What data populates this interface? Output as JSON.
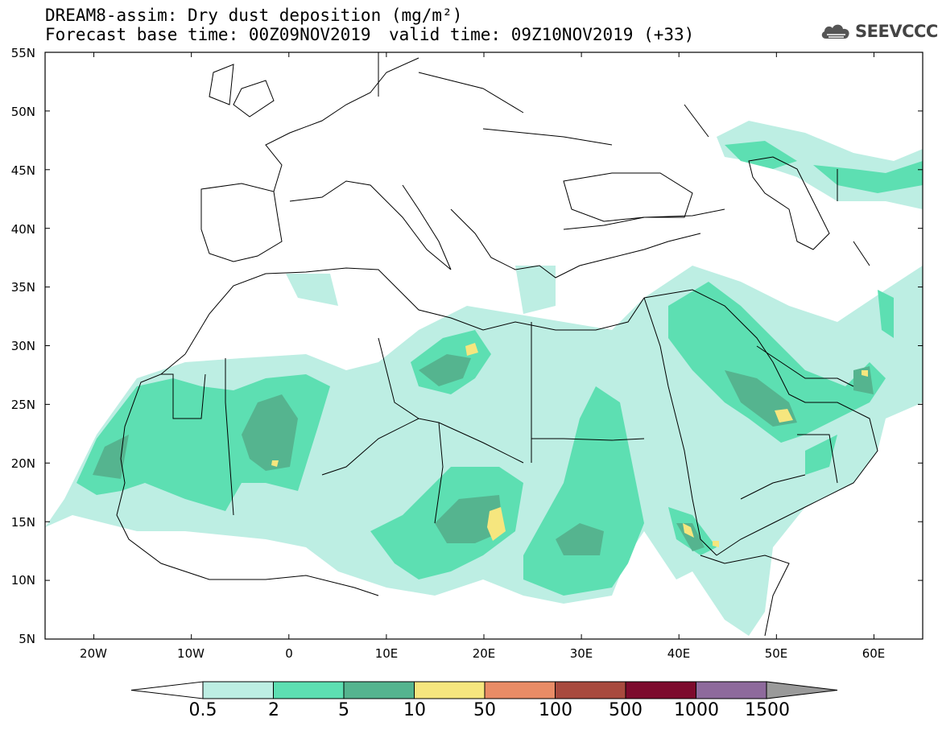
{
  "title": {
    "line1": "DREAM8-assim: Dry dust deposition (mg/m²)",
    "line2": "Forecast base time: 00Z09NOV2019",
    "line3": "valid time: 09Z10NOV2019 (+33)"
  },
  "logo": {
    "text": "SEEVCCC",
    "icon": "cloud-icon"
  },
  "map": {
    "lon_range": [
      -25,
      65
    ],
    "lat_range": [
      5,
      55
    ],
    "lat_ticks": [
      "55N",
      "50N",
      "45N",
      "40N",
      "35N",
      "30N",
      "25N",
      "20N",
      "15N",
      "10N",
      "5N"
    ],
    "lon_ticks": [
      "20W",
      "10W",
      "0",
      "10E",
      "20E",
      "30E",
      "40E",
      "50E",
      "60E"
    ]
  },
  "legend": {
    "levels": [
      "0.5",
      "2",
      "5",
      "10",
      "50",
      "100",
      "500",
      "1000",
      "1500"
    ],
    "colors": [
      "#bdeee3",
      "#5ddfb2",
      "#55b48f",
      "#f6e67e",
      "#e98c66",
      "#a84a3e",
      "#7d0b2d",
      "#8e6a9c",
      "#9a9a9a"
    ],
    "underflow_color": "#ffffff",
    "overflow_color": "#9a9a9a"
  }
}
